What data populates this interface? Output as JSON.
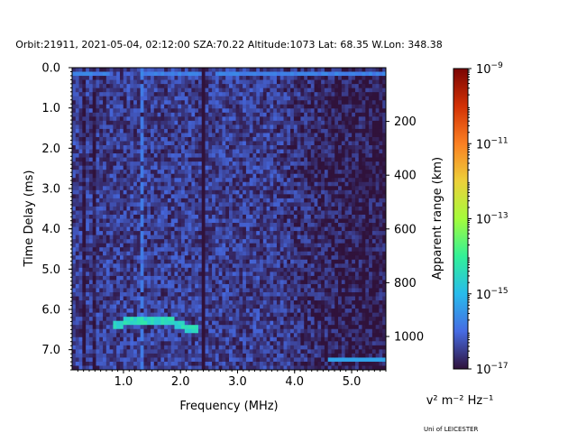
{
  "header": {
    "title": "Orbit:21911, 2021-05-04, 02:12:00 SZA:70.22 Altitude:1073 Lat: 68.35 W.Lon: 348.38"
  },
  "footer": {
    "credit": "Uni of LEICESTER"
  },
  "chart_data": {
    "type": "heatmap",
    "title": "Orbit:21911, 2021-05-04, 02:12:00 SZA:70.22 Altitude:1073 Lat: 68.35 W.Lon: 348.38",
    "xlabel": "Frequency (MHz)",
    "ylabel": "Time Delay (ms)",
    "y2label": "Apparent range (km)",
    "colorbar_label": "v² m⁻² Hz⁻¹",
    "xlim": [
      0.1,
      5.6
    ],
    "ylim": [
      7.5,
      0.0
    ],
    "x_ticks": [
      1.0,
      2.0,
      3.0,
      4.0,
      5.0
    ],
    "x_tick_labels": [
      "1.0",
      "2.0",
      "3.0",
      "4.0",
      "5.0"
    ],
    "y_ticks": [
      0.0,
      1.0,
      2.0,
      3.0,
      4.0,
      5.0,
      6.0,
      7.0
    ],
    "y_tick_labels": [
      "0.0",
      "1.0",
      "2.0",
      "3.0",
      "4.0",
      "5.0",
      "6.0",
      "7.0"
    ],
    "y2_ticks_km": [
      200,
      400,
      600,
      800,
      1000
    ],
    "y2_tick_labels": [
      "200",
      "400",
      "600",
      "800",
      "1000"
    ],
    "colorbar_log10_range": [
      -17,
      -9
    ],
    "colorbar_ticks": [
      {
        "log10": -17,
        "base": "10",
        "exp": "−17"
      },
      {
        "log10": -15,
        "base": "10",
        "exp": "−15"
      },
      {
        "log10": -13,
        "base": "10",
        "exp": "−13"
      },
      {
        "log10": -11,
        "base": "10",
        "exp": "−11"
      },
      {
        "log10": -9,
        "base": "10",
        "exp": "−9"
      }
    ],
    "colormap": "turbo",
    "features": {
      "background_log10": -16.5,
      "near_surface_line": {
        "delay_ms": 0.15,
        "log10": -15.6
      },
      "ground_echo_trace": {
        "points": [
          [
            0.8,
            6.4
          ],
          [
            1.1,
            6.3
          ],
          [
            1.4,
            6.25
          ],
          [
            1.8,
            6.3
          ],
          [
            2.1,
            6.45
          ],
          [
            2.3,
            6.5
          ]
        ],
        "log10": -14.2
      },
      "vertical_line_freq_mhz": 1.32,
      "dark_band_freq_mhz": [
        2.35,
        2.42
      ],
      "late_bright_line": {
        "delay_ms": 7.25,
        "freq_mhz": [
          4.6,
          5.6
        ],
        "log10": -15.3
      }
    }
  }
}
